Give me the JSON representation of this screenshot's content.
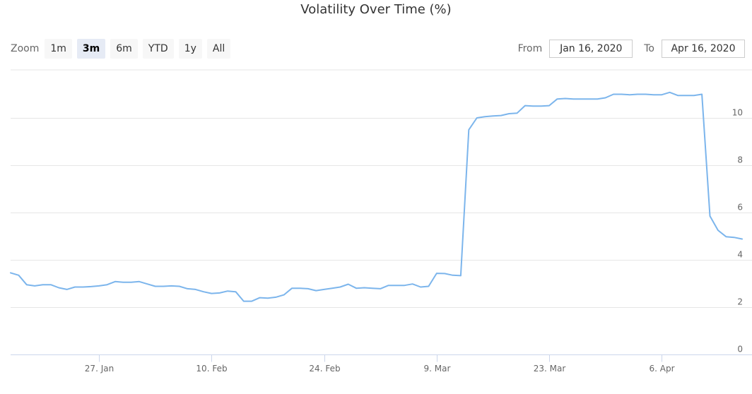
{
  "title": "Volatility Over Time (%)",
  "zoom": {
    "label": "Zoom",
    "buttons": [
      "1m",
      "3m",
      "6m",
      "YTD",
      "1y",
      "All"
    ],
    "active": "3m"
  },
  "range": {
    "from_label": "From",
    "from_value": "Jan 16, 2020",
    "to_label": "To",
    "to_value": "Apr 16, 2020"
  },
  "colors": {
    "series": "#7cb5ec",
    "grid": "#e6e6e6",
    "axis": "#ccd6eb",
    "text": "#666666"
  },
  "chart_data": {
    "type": "line",
    "title": "Volatility Over Time (%)",
    "xlabel": "",
    "ylabel": "",
    "x_range": [
      "2020-01-16",
      "2020-04-16"
    ],
    "ylim": [
      0,
      12
    ],
    "y_ticks": [
      0,
      2,
      4,
      6,
      8,
      10
    ],
    "x_ticks": [
      {
        "date": "2020-01-27",
        "label": "27. Jan"
      },
      {
        "date": "2020-02-10",
        "label": "10. Feb"
      },
      {
        "date": "2020-02-24",
        "label": "24. Feb"
      },
      {
        "date": "2020-03-09",
        "label": "9. Mar"
      },
      {
        "date": "2020-03-23",
        "label": "23. Mar"
      },
      {
        "date": "2020-04-06",
        "label": "6. Apr"
      }
    ],
    "grid": true,
    "y_axis_side": "right",
    "series": [
      {
        "x": [
          "2020-01-16",
          "2020-01-17",
          "2020-01-18",
          "2020-01-19",
          "2020-01-20",
          "2020-01-21",
          "2020-01-22",
          "2020-01-23",
          "2020-01-24",
          "2020-01-25",
          "2020-01-26",
          "2020-01-27",
          "2020-01-28",
          "2020-01-29",
          "2020-01-30",
          "2020-01-31",
          "2020-02-01",
          "2020-02-02",
          "2020-02-03",
          "2020-02-04",
          "2020-02-05",
          "2020-02-06",
          "2020-02-07",
          "2020-02-08",
          "2020-02-09",
          "2020-02-10",
          "2020-02-11",
          "2020-02-12",
          "2020-02-13",
          "2020-02-14",
          "2020-02-15",
          "2020-02-16",
          "2020-02-17",
          "2020-02-18",
          "2020-02-19",
          "2020-02-20",
          "2020-02-21",
          "2020-02-22",
          "2020-02-23",
          "2020-02-24",
          "2020-02-25",
          "2020-02-26",
          "2020-02-27",
          "2020-02-28",
          "2020-02-29",
          "2020-03-01",
          "2020-03-02",
          "2020-03-03",
          "2020-03-04",
          "2020-03-05",
          "2020-03-06",
          "2020-03-07",
          "2020-03-08",
          "2020-03-09",
          "2020-03-10",
          "2020-03-11",
          "2020-03-12",
          "2020-03-13",
          "2020-03-14",
          "2020-03-15",
          "2020-03-16",
          "2020-03-17",
          "2020-03-18",
          "2020-03-19",
          "2020-03-20",
          "2020-03-21",
          "2020-03-22",
          "2020-03-23",
          "2020-03-24",
          "2020-03-25",
          "2020-03-26",
          "2020-03-27",
          "2020-03-28",
          "2020-03-29",
          "2020-03-30",
          "2020-03-31",
          "2020-04-01",
          "2020-04-02",
          "2020-04-03",
          "2020-04-04",
          "2020-04-05",
          "2020-04-06",
          "2020-04-07",
          "2020-04-08",
          "2020-04-09",
          "2020-04-10",
          "2020-04-11",
          "2020-04-12",
          "2020-04-13",
          "2020-04-14",
          "2020-04-15",
          "2020-04-16"
        ],
        "values": [
          3.45,
          3.35,
          2.95,
          2.9,
          2.95,
          2.95,
          2.82,
          2.75,
          2.85,
          2.85,
          2.87,
          2.9,
          2.95,
          3.08,
          3.05,
          3.05,
          3.08,
          2.98,
          2.88,
          2.88,
          2.9,
          2.88,
          2.78,
          2.75,
          2.65,
          2.58,
          2.6,
          2.68,
          2.65,
          2.25,
          2.25,
          2.4,
          2.38,
          2.42,
          2.52,
          2.8,
          2.8,
          2.78,
          2.7,
          2.75,
          2.8,
          2.85,
          2.97,
          2.8,
          2.82,
          2.8,
          2.78,
          2.92,
          2.92,
          2.92,
          2.98,
          2.85,
          2.88,
          3.43,
          3.42,
          3.35,
          3.33,
          9.5,
          10.0,
          10.05,
          10.08,
          10.1,
          10.18,
          10.2,
          10.52,
          10.5,
          10.5,
          10.52,
          10.8,
          10.82,
          10.8,
          10.8,
          10.8,
          10.8,
          10.85,
          11.0,
          11.0,
          10.98,
          11.0,
          11.0,
          10.98,
          10.98,
          11.08,
          10.95,
          10.95,
          10.95,
          11.0,
          5.85,
          5.25,
          4.98,
          4.95,
          4.88
        ]
      }
    ]
  }
}
